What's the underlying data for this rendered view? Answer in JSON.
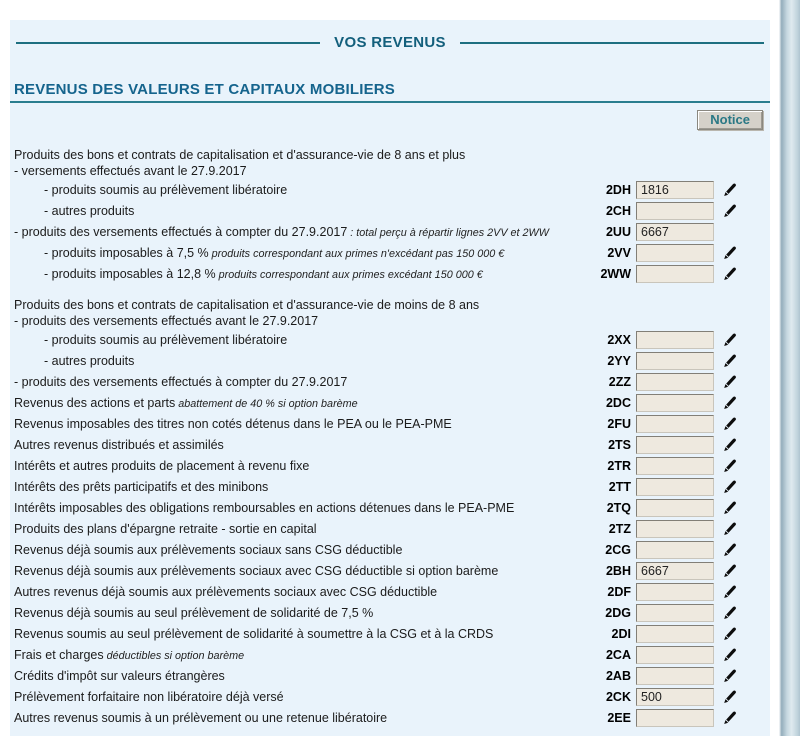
{
  "page": {
    "title": "VOS REVENUS",
    "section_title": "REVENUS DES VALEURS ET CAPITAUX MOBILIERS",
    "notice_button_label": "Notice"
  },
  "colors": {
    "panel_background": "#e9f3fb",
    "accent_teal": "#1d6f80",
    "section_title_blue": "#15648d",
    "field_background": "#eee9df",
    "notice_text": "#2a7885"
  },
  "rows": [
    {
      "type": "text",
      "indent": 0,
      "label": "Produits des bons et contrats de capitalisation et d'assurance-vie de 8 ans et plus"
    },
    {
      "type": "text",
      "indent": 0,
      "label": "- versements effectués avant le 27.9.2017"
    },
    {
      "type": "field",
      "indent": 1,
      "label": "- produits soumis au prélèvement libératoire",
      "code": "2DH",
      "value": "1816",
      "editable": true
    },
    {
      "type": "field",
      "indent": 1,
      "label": "- autres produits",
      "code": "2CH",
      "value": "",
      "editable": true
    },
    {
      "type": "field",
      "indent": 0,
      "label": "- produits des versements effectués à compter du 27.9.2017",
      "note": ": total perçu à répartir lignes 2VV et 2WW",
      "code": "2UU",
      "value": "6667",
      "editable": false
    },
    {
      "type": "field",
      "indent": 1,
      "label": "- produits imposables à 7,5 %",
      "note": "produits correspondant aux primes n'excédant pas 150 000 €",
      "code": "2VV",
      "value": "",
      "editable": true
    },
    {
      "type": "field",
      "indent": 1,
      "label": "- produits imposables à 12,8 %",
      "note": "produits correspondant aux primes excédant 150 000 €",
      "code": "2WW",
      "value": "",
      "editable": true
    },
    {
      "type": "spacer"
    },
    {
      "type": "text",
      "indent": 0,
      "label": "Produits des bons et contrats de capitalisation et d'assurance-vie de moins de 8 ans"
    },
    {
      "type": "text",
      "indent": 0,
      "label": "- produits des versements effectués avant le 27.9.2017"
    },
    {
      "type": "field",
      "indent": 1,
      "label": "- produits soumis au prélèvement libératoire",
      "code": "2XX",
      "value": "",
      "editable": true
    },
    {
      "type": "field",
      "indent": 1,
      "label": "- autres produits",
      "code": "2YY",
      "value": "",
      "editable": true
    },
    {
      "type": "field",
      "indent": 0,
      "label": "- produits des versements effectués à compter du 27.9.2017",
      "code": "2ZZ",
      "value": "",
      "editable": true
    },
    {
      "type": "field",
      "indent": 0,
      "label": "Revenus des actions et parts",
      "note": "abattement de 40 % si option barème",
      "code": "2DC",
      "value": "",
      "editable": true
    },
    {
      "type": "field",
      "indent": 0,
      "label": "Revenus imposables des titres non cotés détenus dans le PEA ou le PEA-PME",
      "code": "2FU",
      "value": "",
      "editable": true
    },
    {
      "type": "field",
      "indent": 0,
      "label": "Autres revenus distribués et assimilés",
      "code": "2TS",
      "value": "",
      "editable": true
    },
    {
      "type": "field",
      "indent": 0,
      "label": "Intérêts et autres produits de placement à revenu fixe",
      "code": "2TR",
      "value": "",
      "editable": true
    },
    {
      "type": "field",
      "indent": 0,
      "label": "Intérêts des prêts participatifs et des minibons",
      "code": "2TT",
      "value": "",
      "editable": true
    },
    {
      "type": "field",
      "indent": 0,
      "label": "Intérêts imposables des obligations remboursables en actions détenues dans le PEA-PME",
      "code": "2TQ",
      "value": "",
      "editable": true
    },
    {
      "type": "field",
      "indent": 0,
      "label": "Produits des plans d'épargne retraite - sortie en capital",
      "code": "2TZ",
      "value": "",
      "editable": true
    },
    {
      "type": "field",
      "indent": 0,
      "label": "Revenus déjà soumis aux prélèvements sociaux sans CSG déductible",
      "code": "2CG",
      "value": "",
      "editable": true
    },
    {
      "type": "field",
      "indent": 0,
      "label": "Revenus déjà soumis aux prélèvements sociaux avec CSG déductible si option barème",
      "code": "2BH",
      "value": "6667",
      "editable": true
    },
    {
      "type": "field",
      "indent": 0,
      "label": "Autres revenus déjà soumis aux prélèvements sociaux avec CSG déductible",
      "code": "2DF",
      "value": "",
      "editable": true
    },
    {
      "type": "field",
      "indent": 0,
      "label": "Revenus déjà soumis au seul prélèvement de solidarité de 7,5 %",
      "code": "2DG",
      "value": "",
      "editable": true
    },
    {
      "type": "field",
      "indent": 0,
      "label": "Revenus soumis au seul prélèvement de solidarité à soumettre à la CSG et à la CRDS",
      "code": "2DI",
      "value": "",
      "editable": true
    },
    {
      "type": "field",
      "indent": 0,
      "label": "Frais et charges",
      "note": "déductibles si option barème",
      "code": "2CA",
      "value": "",
      "editable": true
    },
    {
      "type": "field",
      "indent": 0,
      "label": "Crédits d'impôt sur valeurs étrangères",
      "code": "2AB",
      "value": "",
      "editable": true
    },
    {
      "type": "field",
      "indent": 0,
      "label": "Prélèvement forfaitaire non libératoire déjà versé",
      "code": "2CK",
      "value": "500",
      "editable": true
    },
    {
      "type": "field",
      "indent": 0,
      "label": "Autres revenus soumis à un prélèvement ou une retenue libératoire",
      "code": "2EE",
      "value": "",
      "editable": true
    }
  ]
}
